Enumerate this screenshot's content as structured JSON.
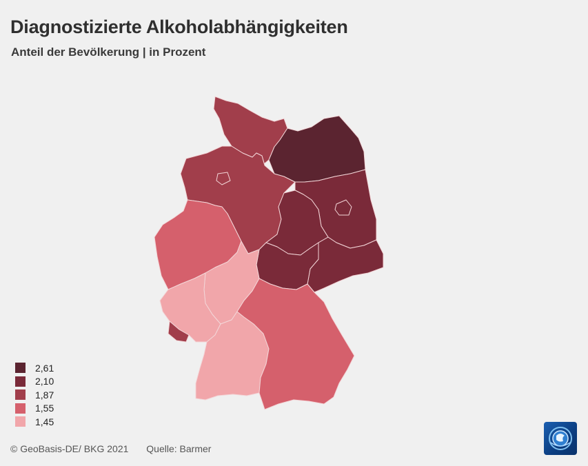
{
  "header": {
    "title": "Diagnostizierte Alkoholabhängigkeiten",
    "subtitle": "Anteil der Bevölkerung | in Prozent"
  },
  "legend": {
    "items": [
      {
        "label": "2,61",
        "color": "#5b2430"
      },
      {
        "label": "2,10",
        "color": "#7a2a39"
      },
      {
        "label": "1,87",
        "color": "#a13e4b"
      },
      {
        "label": "1,55",
        "color": "#d5606c"
      },
      {
        "label": "1,45",
        "color": "#f1a6aa"
      }
    ]
  },
  "map": {
    "regions": [
      {
        "name": "Schleswig-Holstein",
        "value": "1,87"
      },
      {
        "name": "Hamburg",
        "value": "1,87"
      },
      {
        "name": "Niedersachsen",
        "value": "1,87"
      },
      {
        "name": "Bremen",
        "value": "1,87"
      },
      {
        "name": "Mecklenburg-Vorpommern",
        "value": "2,61"
      },
      {
        "name": "Brandenburg",
        "value": "2,10"
      },
      {
        "name": "Berlin",
        "value": "2,10"
      },
      {
        "name": "Sachsen-Anhalt",
        "value": "2,10"
      },
      {
        "name": "Sachsen",
        "value": "2,10"
      },
      {
        "name": "Thüringen",
        "value": "2,10"
      },
      {
        "name": "Nordrhein-Westfalen",
        "value": "1,55"
      },
      {
        "name": "Hessen",
        "value": "1,45"
      },
      {
        "name": "Rheinland-Pfalz",
        "value": "1,45"
      },
      {
        "name": "Saarland",
        "value": "1,87"
      },
      {
        "name": "Baden-Württemberg",
        "value": "1,45"
      },
      {
        "name": "Bayern",
        "value": "1,55"
      }
    ]
  },
  "footer": {
    "copyright": "© GeoBasis-DE/ BKG 2021",
    "source": "Quelle: Barmer"
  },
  "logo": {
    "icon": "tagesschau-logo-icon"
  }
}
